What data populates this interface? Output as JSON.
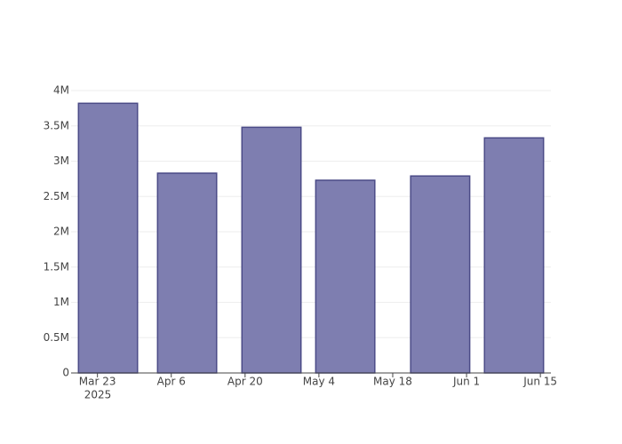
{
  "chart_data": {
    "type": "bar",
    "x": [
      "2025-03-25",
      "2025-04-09",
      "2025-04-25",
      "2025-05-09",
      "2025-05-27",
      "2025-06-10"
    ],
    "values": [
      3820000,
      2830000,
      3480000,
      2730000,
      2790000,
      3330000
    ],
    "color": "#7e7eb0",
    "line_color": "#4b4b87",
    "xlim": [
      "2025-03-18",
      "2025-06-17"
    ],
    "xticks": [
      {
        "value": "2025-03-23",
        "label": "Mar 23"
      },
      {
        "value": "2025-04-06",
        "label": "Apr 6"
      },
      {
        "value": "2025-04-20",
        "label": "Apr 20"
      },
      {
        "value": "2025-05-04",
        "label": "May 4"
      },
      {
        "value": "2025-05-18",
        "label": "May 18"
      },
      {
        "value": "2025-06-01",
        "label": "Jun 1"
      },
      {
        "value": "2025-06-15",
        "label": "Jun 15"
      }
    ],
    "x_year_label": "2025",
    "ylim": [
      0,
      4000000
    ],
    "yticks": [
      0,
      {
        "value": 500000,
        "label": "0.5M"
      },
      {
        "value": 1000000,
        "label": "1M"
      },
      {
        "value": 1500000,
        "label": "1.5M"
      },
      {
        "value": 2000000,
        "label": "2M"
      },
      {
        "value": 2500000,
        "label": "2.5M"
      },
      {
        "value": 3000000,
        "label": "3M"
      },
      {
        "value": 3500000,
        "label": "3.5M"
      },
      {
        "value": 4000000,
        "label": "4M"
      }
    ],
    "grid": true
  }
}
